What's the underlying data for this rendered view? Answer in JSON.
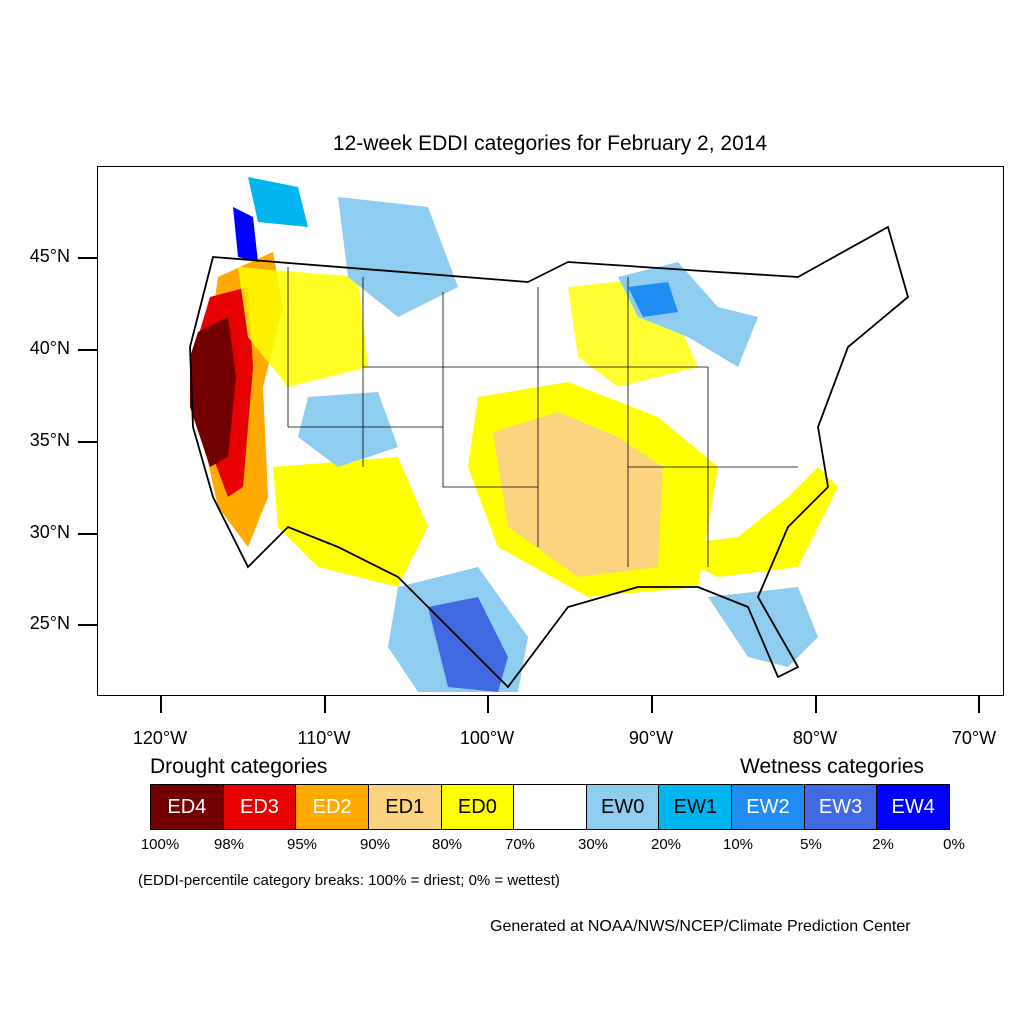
{
  "title": "12-week EDDI categories for February 2, 2014",
  "y_axis_labels": [
    "45°N",
    "40°N",
    "35°N",
    "30°N",
    "25°N"
  ],
  "x_axis_labels": [
    "120°W",
    "110°W",
    "100°W",
    "90°W",
    "80°W",
    "70°W"
  ],
  "legend": {
    "drought_heading": "Drought categories",
    "wetness_heading": "Wetness categories",
    "categories": [
      {
        "label": "ED4",
        "color": "#730000"
      },
      {
        "label": "ED3",
        "color": "#e60000"
      },
      {
        "label": "ED2",
        "color": "#ffaa00"
      },
      {
        "label": "ED1",
        "color": "#fcd37f"
      },
      {
        "label": "ED0",
        "color": "#ffff00"
      },
      {
        "label": "",
        "color": "#ffffff"
      },
      {
        "label": "EW0",
        "color": "#8fcdf0"
      },
      {
        "label": "EW1",
        "color": "#00b4f0"
      },
      {
        "label": "EW2",
        "color": "#1e8cf0"
      },
      {
        "label": "EW3",
        "color": "#4169e1"
      },
      {
        "label": "EW4",
        "color": "#0000ff"
      }
    ],
    "breaks": [
      "100%",
      "98%",
      "95%",
      "90%",
      "80%",
      "70%",
      "30%",
      "20%",
      "10%",
      "5%",
      "2%",
      "0%"
    ]
  },
  "note": "(EDDI-percentile category breaks: 100% = driest; 0% = wettest)",
  "credit": "Generated at NOAA/NWS/NCEP/Climate Prediction Center"
}
